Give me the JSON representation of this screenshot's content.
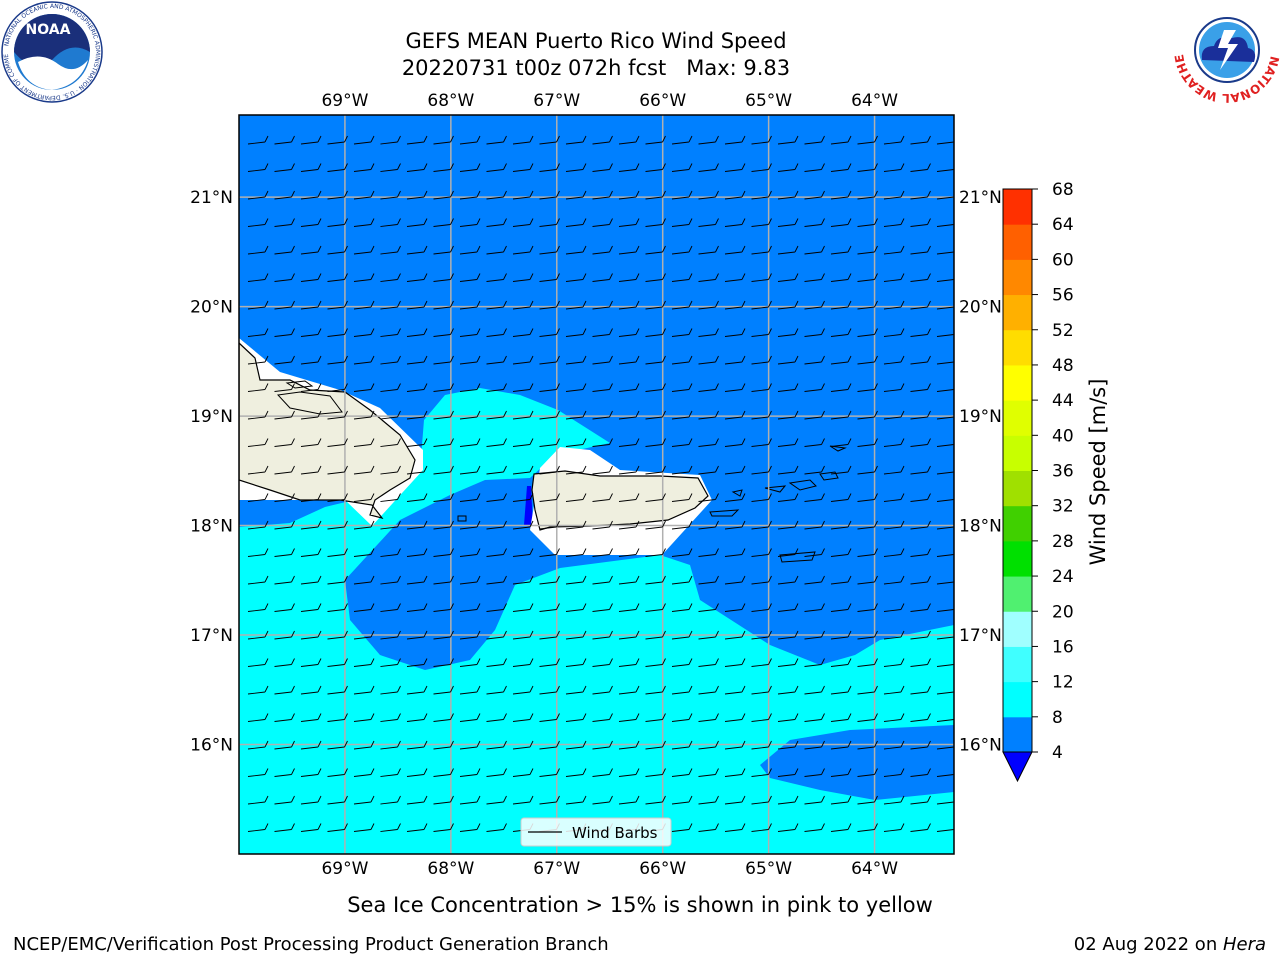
{
  "title": {
    "line1": "GEFS MEAN Puerto Rico Wind Speed",
    "line2": "20220731 t00z 072h fcst   Max: 9.83"
  },
  "map": {
    "lon_labels": [
      "69°W",
      "68°W",
      "67°W",
      "66°W",
      "65°W",
      "64°W"
    ],
    "lat_labels": [
      "21°N",
      "20°N",
      "19°N",
      "18°N",
      "17°N",
      "16°N"
    ],
    "lon_range": [
      -70.0,
      -63.25
    ],
    "lat_range": [
      15.0,
      21.75
    ],
    "base_fill": "#0080ff",
    "land_color": "#efefdf"
  },
  "legend": {
    "label": "Wind Barbs"
  },
  "colorbar": {
    "label": "Wind Speed [m/s]",
    "levels": [
      4,
      8,
      12,
      16,
      20,
      24,
      28,
      32,
      36,
      40,
      44,
      48,
      52,
      56,
      60,
      64,
      68
    ],
    "tick_labels": [
      "4",
      "8",
      "12",
      "16",
      "20",
      "24",
      "28",
      "32",
      "36",
      "40",
      "44",
      "48",
      "52",
      "56",
      "60",
      "64",
      "68"
    ],
    "colors": [
      "#0080ff",
      "#00ffff",
      "#40ffff",
      "#a0ffff",
      "#50f070",
      "#00e000",
      "#40d000",
      "#a0e000",
      "#c8ff00",
      "#e0ff00",
      "#ffff00",
      "#ffdd00",
      "#ffb000",
      "#ff8800",
      "#ff6000",
      "#ff3000"
    ],
    "under_color": "#0000ff"
  },
  "caption": "Sea Ice Concentration > 15% is shown in pink to yellow",
  "footer": {
    "left": "NCEP/EMC/Verification Post Processing Product Generation Branch",
    "right_prefix": "02 Aug 2022 on ",
    "right_host": "Hera"
  },
  "logos": {
    "noaa_text": "NOAA",
    "noaa_ring": "NATIONAL OCEANIC AND ATMOSPHERIC ADMINISTRATION · U.S. DEPARTMENT OF COMMERCE",
    "nws_ring": "NATIONAL WEATHER SERVICE"
  }
}
